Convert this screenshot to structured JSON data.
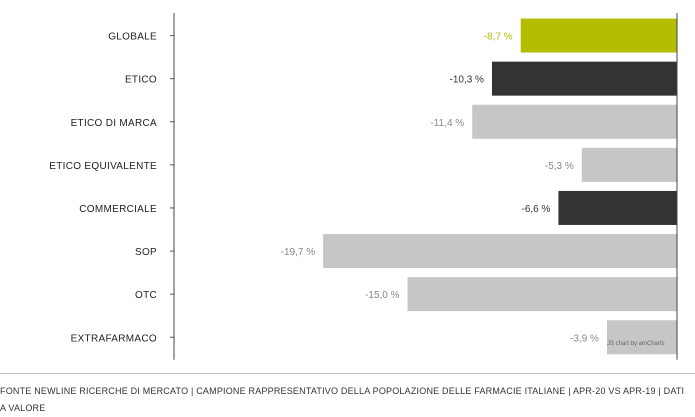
{
  "chart_data": {
    "type": "bar",
    "orientation": "horizontal",
    "categories": [
      "GLOBALE",
      "ETICO",
      "ETICO DI MARCA",
      "ETICO EQUIVALENTE",
      "COMMERCIALE",
      "SOP",
      "OTC",
      "EXTRAFARMACO"
    ],
    "values": [
      -8.7,
      -10.3,
      -11.4,
      -5.3,
      -6.6,
      -19.7,
      -15.0,
      -3.9
    ],
    "value_labels": [
      "-8,7 %",
      "-10,3 %",
      "-11,4 %",
      "-5,3 %",
      "-6,6 %",
      "-19,7 %",
      "-15,0 %",
      "-3,9 %"
    ],
    "bar_colors": [
      "#b5bd00",
      "#333333",
      "#c6c6c6",
      "#c6c6c6",
      "#333333",
      "#c6c6c6",
      "#c6c6c6",
      "#c6c6c6"
    ],
    "label_colors": [
      "#b5bd00",
      "#333333",
      "#888888",
      "#888888",
      "#333333",
      "#888888",
      "#888888",
      "#888888"
    ],
    "xlim": [
      -28,
      0
    ],
    "grid": false
  },
  "footer": {
    "line1": "FONTE NEWLINE RICERCHE DI MERCATO  |  CAMPIONE RAPPRESENTATIVO DELLA POPOLAZIONE DELLE FARMACIE ITALIANE  |  APR-20 VS APR-19  |  DATI",
    "line2": "A VALORE"
  },
  "credit": "JS chart by amCharts"
}
